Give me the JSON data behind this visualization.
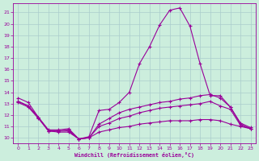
{
  "xlabel": "Windchill (Refroidissement éolien,°C)",
  "bg_color": "#cceedd",
  "line_color": "#990099",
  "grid_color": "#aacccc",
  "xlim": [
    -0.5,
    23.5
  ],
  "ylim": [
    9.5,
    21.8
  ],
  "xticks": [
    0,
    1,
    2,
    3,
    4,
    5,
    6,
    7,
    8,
    9,
    10,
    11,
    12,
    13,
    14,
    15,
    16,
    17,
    18,
    19,
    20,
    21,
    22,
    23
  ],
  "yticks": [
    10,
    11,
    12,
    13,
    14,
    15,
    16,
    17,
    18,
    19,
    20,
    21
  ],
  "line1_x": [
    0,
    1,
    2,
    3,
    4,
    5,
    6,
    7,
    8,
    9,
    10,
    11,
    12,
    13,
    14,
    15,
    16,
    17,
    18,
    19,
    20,
    21,
    22,
    23
  ],
  "line1_y": [
    13.5,
    13.1,
    11.8,
    10.7,
    10.7,
    10.8,
    9.9,
    10.1,
    12.4,
    12.5,
    13.1,
    14.0,
    16.5,
    18.0,
    19.9,
    21.2,
    21.4,
    19.8,
    16.5,
    13.7,
    13.7,
    12.7,
    11.3,
    10.9
  ],
  "line2_x": [
    0,
    1,
    2,
    3,
    4,
    5,
    6,
    7,
    8,
    9,
    10,
    11,
    12,
    13,
    14,
    15,
    16,
    17,
    18,
    19,
    20,
    21,
    22,
    23
  ],
  "line2_y": [
    13.2,
    12.8,
    11.8,
    10.6,
    10.6,
    10.7,
    9.9,
    10.0,
    11.2,
    11.7,
    12.2,
    12.5,
    12.7,
    12.9,
    13.1,
    13.2,
    13.4,
    13.5,
    13.7,
    13.8,
    13.5,
    12.7,
    11.2,
    10.8
  ],
  "line3_x": [
    0,
    1,
    2,
    3,
    4,
    5,
    6,
    7,
    8,
    9,
    10,
    11,
    12,
    13,
    14,
    15,
    16,
    17,
    18,
    19,
    20,
    21,
    22,
    23
  ],
  "line3_y": [
    13.2,
    12.8,
    11.8,
    10.6,
    10.6,
    10.6,
    9.9,
    10.0,
    11.0,
    11.3,
    11.7,
    11.9,
    12.2,
    12.4,
    12.6,
    12.7,
    12.8,
    12.9,
    13.0,
    13.2,
    12.8,
    12.5,
    11.1,
    10.8
  ],
  "line4_x": [
    0,
    1,
    2,
    3,
    4,
    5,
    6,
    7,
    8,
    9,
    10,
    11,
    12,
    13,
    14,
    15,
    16,
    17,
    18,
    19,
    20,
    21,
    22,
    23
  ],
  "line4_y": [
    13.1,
    12.7,
    11.7,
    10.6,
    10.5,
    10.5,
    9.9,
    10.0,
    10.5,
    10.7,
    10.9,
    11.0,
    11.2,
    11.3,
    11.4,
    11.5,
    11.5,
    11.5,
    11.6,
    11.6,
    11.5,
    11.2,
    11.0,
    10.8
  ]
}
